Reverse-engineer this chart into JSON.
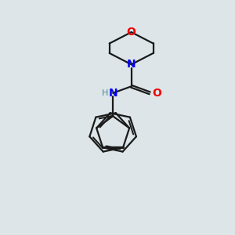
{
  "bg_color": "#dde5e8",
  "bond_color": "#1a1a1a",
  "N_color": "#0000ee",
  "O_color": "#ee0000",
  "H_color": "#4a8a8a",
  "line_width": 1.6,
  "figsize": [
    3.0,
    3.0
  ],
  "dpi": 100,
  "xlim": [
    0,
    10
  ],
  "ylim": [
    0,
    10
  ]
}
